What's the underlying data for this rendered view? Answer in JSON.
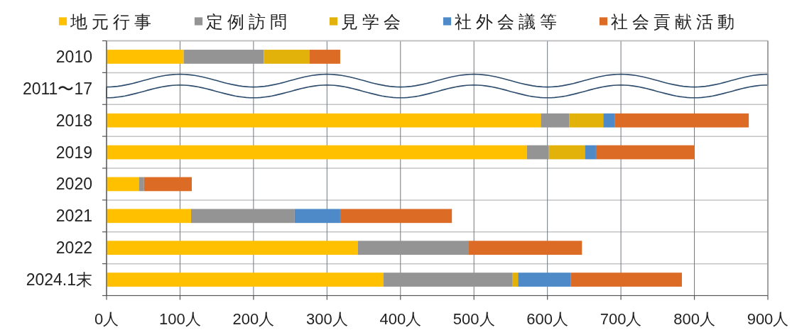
{
  "chart_data": {
    "type": "bar",
    "orientation": "horizontal",
    "stacked": true,
    "categories": [
      "2010",
      "2011〜17",
      "2018",
      "2019",
      "2020",
      "2021",
      "2022",
      "2024.1末"
    ],
    "series": [
      {
        "name": "地元行事",
        "color": "#ffc000",
        "values": [
          105,
          null,
          591,
          572,
          44,
          115,
          342,
          377
        ]
      },
      {
        "name": "定例訪問",
        "color": "#949494",
        "values": [
          109,
          null,
          39,
          30,
          7,
          141,
          151,
          175
        ]
      },
      {
        "name": "見学会",
        "color": "#e2b10a",
        "values": [
          62,
          null,
          46,
          49,
          null,
          null,
          null,
          8
        ]
      },
      {
        "name": "社外会議等",
        "color": "#4e8ac8",
        "values": [
          null,
          null,
          16,
          15,
          null,
          62,
          null,
          72
        ]
      },
      {
        "name": "社会貢献活動",
        "color": "#dc6b26",
        "values": [
          42,
          null,
          182,
          134,
          65,
          152,
          154,
          151
        ]
      }
    ],
    "xlim": [
      0,
      900
    ],
    "xticks": [
      {
        "value": 0,
        "label": "0人"
      },
      {
        "value": 100,
        "label": "100人"
      },
      {
        "value": 200,
        "label": "200人"
      },
      {
        "value": 300,
        "label": "300人"
      },
      {
        "value": 400,
        "label": "400人"
      },
      {
        "value": 500,
        "label": "500人"
      },
      {
        "value": 600,
        "label": "600人"
      },
      {
        "value": 700,
        "label": "700人"
      },
      {
        "value": 800,
        "label": "800人"
      },
      {
        "value": 900,
        "label": "900人"
      }
    ],
    "grid": true,
    "legend": "top"
  }
}
